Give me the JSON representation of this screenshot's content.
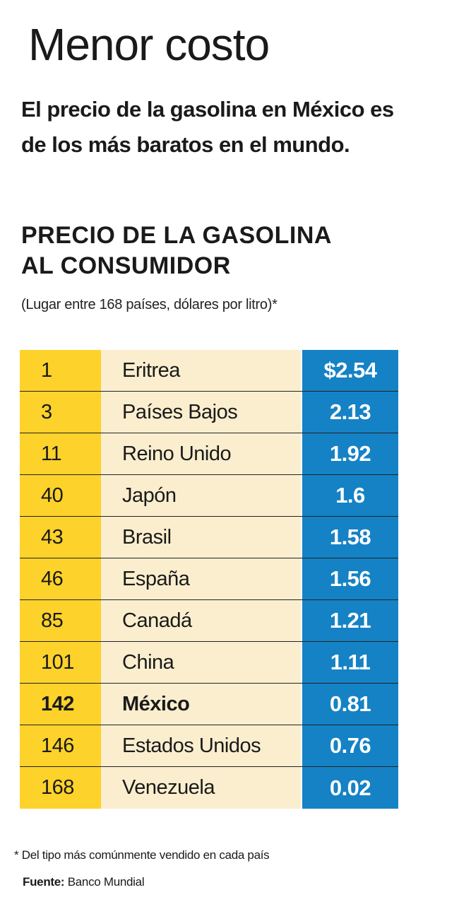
{
  "header": {
    "title": "Menor costo",
    "subtitle": "El precio de la gasolina en México es de los más baratos en el mundo.",
    "heading_line1": "PRECIO DE LA GASOLINA",
    "heading_line2": "AL CONSUMIDOR",
    "note": "(Lugar entre 168 países, dólares por litro)*"
  },
  "colors": {
    "rank_bg": "#fdd22b",
    "country_bg": "#fbeece",
    "price_bg": "#1582c5"
  },
  "chart_data": {
    "type": "table",
    "title": "PRECIO DE LA GASOLINA AL CONSUMIDOR",
    "subtitle": "(Lugar entre 168 países, dólares por litro)*",
    "highlight": "México",
    "rows": [
      {
        "rank": "1",
        "country": "Eritrea",
        "price": "$2.54"
      },
      {
        "rank": "3",
        "country": "Países Bajos",
        "price": "2.13"
      },
      {
        "rank": "11",
        "country": "Reino Unido",
        "price": "1.92"
      },
      {
        "rank": "40",
        "country": "Japón",
        "price": "1.6"
      },
      {
        "rank": "43",
        "country": "Brasil",
        "price": "1.58"
      },
      {
        "rank": "46",
        "country": "España",
        "price": "1.56"
      },
      {
        "rank": "85",
        "country": "Canadá",
        "price": "1.21"
      },
      {
        "rank": "101",
        "country": "China",
        "price": "1.11"
      },
      {
        "rank": "142",
        "country": "México",
        "price": "0.81"
      },
      {
        "rank": "146",
        "country": "Estados Unidos",
        "price": "0.76"
      },
      {
        "rank": "168",
        "country": "Venezuela",
        "price": "0.02"
      }
    ]
  },
  "footer": {
    "footnote": "* Del tipo más comúnmente vendido en cada país",
    "source_label": "Fuente:",
    "source_text": "Banco Mundial"
  }
}
